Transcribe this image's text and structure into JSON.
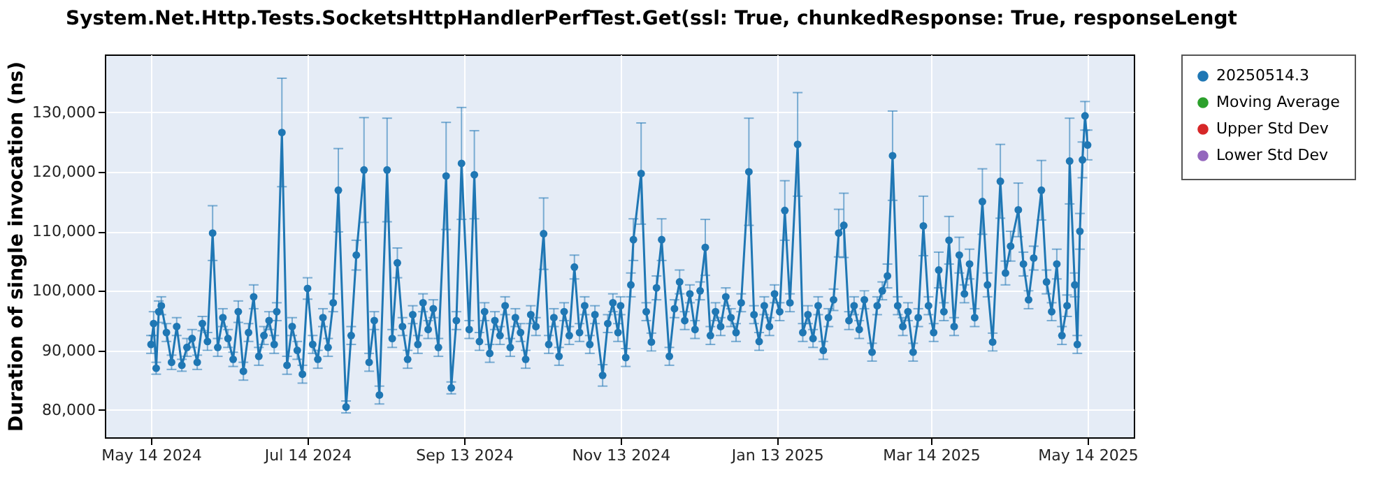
{
  "chart_data": {
    "type": "line",
    "title": "System.Net.Http.Tests.SocketsHttpHandlerPerfTest.Get(ssl: True, chunkedResponse: True, responseLengt",
    "ylabel": "Duration of single invocation (ns)",
    "x": [
      "2024-05-14",
      "2024-05-15",
      "2024-05-16",
      "2024-05-17",
      "2024-05-18",
      "2024-05-20",
      "2024-05-22",
      "2024-05-24",
      "2024-05-26",
      "2024-05-28",
      "2024-05-30",
      "2024-06-01",
      "2024-06-03",
      "2024-06-05",
      "2024-06-07",
      "2024-06-09",
      "2024-06-11",
      "2024-06-13",
      "2024-06-15",
      "2024-06-17",
      "2024-06-19",
      "2024-06-21",
      "2024-06-23",
      "2024-06-25",
      "2024-06-27",
      "2024-06-29",
      "2024-07-01",
      "2024-07-02",
      "2024-07-04",
      "2024-07-06",
      "2024-07-08",
      "2024-07-10",
      "2024-07-12",
      "2024-07-14",
      "2024-07-16",
      "2024-07-18",
      "2024-07-20",
      "2024-07-22",
      "2024-07-24",
      "2024-07-26",
      "2024-07-29",
      "2024-07-31",
      "2024-08-02",
      "2024-08-05",
      "2024-08-07",
      "2024-08-09",
      "2024-08-11",
      "2024-08-14",
      "2024-08-16",
      "2024-08-18",
      "2024-08-20",
      "2024-08-22",
      "2024-08-24",
      "2024-08-26",
      "2024-08-28",
      "2024-08-30",
      "2024-09-01",
      "2024-09-03",
      "2024-09-06",
      "2024-09-08",
      "2024-09-10",
      "2024-09-12",
      "2024-09-15",
      "2024-09-17",
      "2024-09-19",
      "2024-09-21",
      "2024-09-23",
      "2024-09-25",
      "2024-09-27",
      "2024-09-29",
      "2024-10-01",
      "2024-10-03",
      "2024-10-05",
      "2024-10-07",
      "2024-10-09",
      "2024-10-11",
      "2024-10-14",
      "2024-10-16",
      "2024-10-18",
      "2024-10-20",
      "2024-10-22",
      "2024-10-24",
      "2024-10-26",
      "2024-10-28",
      "2024-10-30",
      "2024-11-01",
      "2024-11-03",
      "2024-11-06",
      "2024-11-08",
      "2024-11-10",
      "2024-11-12",
      "2024-11-13",
      "2024-11-15",
      "2024-11-17",
      "2024-11-18",
      "2024-11-21",
      "2024-11-23",
      "2024-11-25",
      "2024-11-27",
      "2024-11-29",
      "2024-12-02",
      "2024-12-04",
      "2024-12-06",
      "2024-12-08",
      "2024-12-10",
      "2024-12-12",
      "2024-12-14",
      "2024-12-16",
      "2024-12-18",
      "2024-12-20",
      "2024-12-22",
      "2024-12-24",
      "2024-12-26",
      "2024-12-28",
      "2024-12-30",
      "2025-01-02",
      "2025-01-04",
      "2025-01-06",
      "2025-01-08",
      "2025-01-10",
      "2025-01-12",
      "2025-01-14",
      "2025-01-16",
      "2025-01-18",
      "2025-01-21",
      "2025-01-23",
      "2025-01-25",
      "2025-01-27",
      "2025-01-29",
      "2025-01-31",
      "2025-02-02",
      "2025-02-04",
      "2025-02-06",
      "2025-02-08",
      "2025-02-10",
      "2025-02-12",
      "2025-02-14",
      "2025-02-16",
      "2025-02-19",
      "2025-02-21",
      "2025-02-23",
      "2025-02-25",
      "2025-02-27",
      "2025-03-01",
      "2025-03-03",
      "2025-03-05",
      "2025-03-07",
      "2025-03-09",
      "2025-03-11",
      "2025-03-13",
      "2025-03-15",
      "2025-03-17",
      "2025-03-19",
      "2025-03-21",
      "2025-03-23",
      "2025-03-25",
      "2025-03-27",
      "2025-03-29",
      "2025-03-31",
      "2025-04-03",
      "2025-04-05",
      "2025-04-07",
      "2025-04-10",
      "2025-04-12",
      "2025-04-14",
      "2025-04-17",
      "2025-04-19",
      "2025-04-21",
      "2025-04-23",
      "2025-04-26",
      "2025-04-28",
      "2025-04-30",
      "2025-05-02",
      "2025-05-04",
      "2025-05-06",
      "2025-05-07",
      "2025-05-09",
      "2025-05-10",
      "2025-05-11",
      "2025-05-12",
      "2025-05-13",
      "2025-05-14"
    ],
    "series": [
      {
        "name": "20250514.3",
        "color": "#1f77b4",
        "values": [
          91000,
          94500,
          87000,
          96500,
          97500,
          93000,
          88000,
          94000,
          87500,
          90500,
          92000,
          88000,
          94500,
          91500,
          109700,
          90500,
          95500,
          92000,
          88500,
          96500,
          86500,
          93000,
          99000,
          89000,
          92500,
          95000,
          91000,
          96500,
          126600,
          87500,
          94000,
          90000,
          86000,
          100400,
          91000,
          88500,
          95500,
          90500,
          98000,
          116900,
          80500,
          92500,
          106000,
          120300,
          88000,
          95000,
          82500,
          120300,
          92000,
          104700,
          94000,
          88500,
          96000,
          91000,
          98000,
          93500,
          97000,
          90500,
          119300,
          83700,
          95000,
          121400,
          93500,
          119500,
          91500,
          96500,
          89500,
          95000,
          92500,
          97500,
          90500,
          95500,
          93000,
          88500,
          96000,
          94000,
          109600,
          91000,
          95500,
          89000,
          96500,
          92500,
          104000,
          93000,
          97500,
          91000,
          96000,
          85800,
          94500,
          98000,
          93000,
          97500,
          88800,
          101000,
          108600,
          119700,
          96500,
          91400,
          100500,
          108600,
          89000,
          97000,
          101500,
          95000,
          99500,
          93500,
          100000,
          107300,
          92500,
          96500,
          94000,
          99000,
          95500,
          93000,
          98000,
          120000,
          96000,
          91500,
          97500,
          94000,
          99500,
          96500,
          113500,
          98000,
          124600,
          93000,
          96000,
          92000,
          97500,
          90000,
          95500,
          98500,
          109700,
          111000,
          95000,
          97500,
          93500,
          98500,
          89700,
          97500,
          100000,
          102500,
          122700,
          97500,
          94000,
          96500,
          89700,
          95500,
          110900,
          97500,
          93000,
          103500,
          96500,
          108500,
          94000,
          106000,
          99500,
          104500,
          95500,
          115000,
          101000,
          91400,
          118400,
          103000,
          107500,
          113600,
          104500,
          98500,
          105500,
          116900,
          101500,
          96500,
          104500,
          92500,
          97500,
          121800,
          101000,
          91000,
          110000,
          122000,
          129400,
          124500
        ],
        "errors": [
          1500,
          2000,
          1000,
          1800,
          1500,
          1500,
          1200,
          1500,
          1000,
          1500,
          1500,
          1200,
          1200,
          1500,
          4600,
          1500,
          1500,
          1500,
          1200,
          1800,
          1500,
          1500,
          2000,
          1500,
          1500,
          1500,
          1500,
          1500,
          9100,
          1500,
          1500,
          1500,
          1500,
          1800,
          1500,
          1500,
          1500,
          1500,
          1500,
          7000,
          1000,
          1500,
          2500,
          8800,
          1500,
          1500,
          1500,
          8700,
          1500,
          2500,
          1500,
          1500,
          1500,
          1500,
          1500,
          1500,
          1500,
          1500,
          9000,
          1000,
          1500,
          9400,
          1500,
          7400,
          1500,
          1500,
          1500,
          1500,
          1500,
          1500,
          1500,
          1500,
          1500,
          1500,
          1500,
          1500,
          6000,
          1500,
          1500,
          1500,
          1500,
          1500,
          2000,
          1500,
          1500,
          1500,
          1500,
          1800,
          1500,
          1500,
          1500,
          1500,
          1500,
          2000,
          3500,
          8500,
          1500,
          1500,
          2000,
          3500,
          1500,
          1500,
          2000,
          1500,
          1500,
          1500,
          1500,
          4700,
          1500,
          1500,
          1500,
          1500,
          1500,
          1500,
          1500,
          9000,
          1500,
          1500,
          1500,
          1500,
          1500,
          1500,
          5000,
          1500,
          8700,
          1500,
          1500,
          1500,
          1500,
          1500,
          1500,
          1800,
          4000,
          5400,
          1500,
          1500,
          1500,
          1500,
          1500,
          1500,
          1500,
          2000,
          7500,
          1500,
          1500,
          1500,
          1500,
          1500,
          5000,
          1500,
          1500,
          3000,
          1500,
          4000,
          1500,
          3000,
          1500,
          2500,
          1500,
          5500,
          2000,
          1500,
          6200,
          2000,
          2500,
          4500,
          2000,
          1500,
          2000,
          5000,
          2000,
          1500,
          2500,
          1500,
          1800,
          7200,
          2000,
          1500,
          3000,
          3000,
          2400,
          2500
        ]
      },
      {
        "name": "Moving Average",
        "color": "#2ca02c",
        "values": [
          null,
          null,
          null,
          null,
          null,
          null,
          null,
          null,
          null,
          null,
          null,
          null,
          null,
          null,
          null,
          null,
          null,
          null,
          null,
          null,
          null,
          null,
          null,
          null,
          null,
          null,
          null,
          null,
          null,
          null,
          null,
          null,
          null,
          null,
          null,
          null,
          null,
          null,
          null,
          null,
          null,
          null,
          null,
          null,
          null,
          null,
          null,
          null,
          null,
          null,
          null,
          null,
          null,
          null,
          null,
          null,
          null,
          null,
          null,
          null,
          null,
          null,
          null,
          null,
          null,
          null,
          null,
          null,
          null,
          null,
          null,
          null,
          null,
          null,
          null,
          null,
          null,
          null,
          null,
          null,
          null,
          null,
          null,
          null,
          null,
          null,
          null,
          null,
          null,
          null,
          null,
          null,
          null,
          null,
          null,
          null,
          null,
          null,
          null,
          null,
          null,
          null,
          null,
          null,
          null,
          null,
          null,
          null,
          null,
          null,
          null,
          null,
          null,
          null,
          null,
          null,
          null,
          null,
          null,
          null,
          null,
          null,
          null,
          null,
          null,
          null,
          null,
          null,
          null,
          null,
          null,
          null,
          null,
          null,
          null,
          null,
          null,
          null,
          null,
          null,
          null,
          null,
          null,
          null,
          null,
          null,
          null,
          null,
          null,
          null,
          null,
          null,
          null,
          null,
          null,
          null,
          null,
          null,
          null,
          null,
          null,
          null,
          null,
          null,
          null,
          null,
          null,
          null,
          null,
          null,
          null,
          null,
          null,
          null,
          null,
          null,
          null,
          null,
          null,
          null,
          null,
          null
        ]
      },
      {
        "name": "Upper Std Dev",
        "color": "#d62728",
        "values": [
          null,
          null,
          null,
          null,
          null,
          null,
          null,
          null,
          null,
          null,
          null,
          null,
          null,
          null,
          null,
          null,
          null,
          null,
          null,
          null,
          null,
          null,
          null,
          null,
          null,
          null,
          null,
          null,
          null,
          null,
          null,
          null,
          null,
          null,
          null,
          null,
          null,
          null,
          null,
          null,
          null,
          null,
          null,
          null,
          null,
          null,
          null,
          null,
          null,
          null,
          null,
          null,
          null,
          null,
          null,
          null,
          null,
          null,
          null,
          null,
          null,
          null,
          null,
          null,
          null,
          null,
          null,
          null,
          null,
          null,
          null,
          null,
          null,
          null,
          null,
          null,
          null,
          null,
          null,
          null,
          null,
          null,
          null,
          null,
          null,
          null,
          null,
          null,
          null,
          null,
          null,
          null,
          null,
          null,
          null,
          null,
          null,
          null,
          null,
          null,
          null,
          null,
          null,
          null,
          null,
          null,
          null,
          null,
          null,
          null,
          null,
          null,
          null,
          null,
          null,
          null,
          null,
          null,
          null,
          null,
          null,
          null,
          null,
          null,
          null,
          null,
          null,
          null,
          null,
          null,
          null,
          null,
          null,
          null,
          null,
          null,
          null,
          null,
          null,
          null,
          null,
          null,
          null,
          null,
          null,
          null,
          null,
          null,
          null,
          null,
          null,
          null,
          null,
          null,
          null,
          null,
          null,
          null,
          null,
          null,
          null,
          null,
          null,
          null,
          null,
          null,
          null,
          null,
          null,
          null,
          null,
          null,
          null,
          null,
          null,
          null,
          null,
          null,
          null,
          null,
          null,
          null
        ]
      },
      {
        "name": "Lower Std Dev",
        "color": "#9467bd",
        "values": [
          null,
          null,
          null,
          null,
          null,
          null,
          null,
          null,
          null,
          null,
          null,
          null,
          null,
          null,
          null,
          null,
          null,
          null,
          null,
          null,
          null,
          null,
          null,
          null,
          null,
          null,
          null,
          null,
          null,
          null,
          null,
          null,
          null,
          null,
          null,
          null,
          null,
          null,
          null,
          null,
          null,
          null,
          null,
          null,
          null,
          null,
          null,
          null,
          null,
          null,
          null,
          null,
          null,
          null,
          null,
          null,
          null,
          null,
          null,
          null,
          null,
          null,
          null,
          null,
          null,
          null,
          null,
          null,
          null,
          null,
          null,
          null,
          null,
          null,
          null,
          null,
          null,
          null,
          null,
          null,
          null,
          null,
          null,
          null,
          null,
          null,
          null,
          null,
          null,
          null,
          null,
          null,
          null,
          null,
          null,
          null,
          null,
          null,
          null,
          null,
          null,
          null,
          null,
          null,
          null,
          null,
          null,
          null,
          null,
          null,
          null,
          null,
          null,
          null,
          null,
          null,
          null,
          null,
          null,
          null,
          null,
          null,
          null,
          null,
          null,
          null,
          null,
          null,
          null,
          null,
          null,
          null,
          null,
          null,
          null,
          null,
          null,
          null,
          null,
          null,
          null,
          null,
          null,
          null,
          null,
          null,
          null,
          null,
          null,
          null,
          null,
          null,
          null,
          null,
          null,
          null,
          null,
          null,
          null,
          null,
          null,
          null,
          null,
          null,
          null,
          null,
          null,
          null,
          null,
          null,
          null,
          null,
          null,
          null,
          null,
          null,
          null,
          null,
          null,
          null,
          null,
          null
        ]
      }
    ],
    "xlim": [
      "2024-04-26",
      "2025-06-01"
    ],
    "xticks": [
      {
        "value": "2024-05-14",
        "label": "May 14 2024"
      },
      {
        "value": "2024-07-14",
        "label": "Jul 14 2024"
      },
      {
        "value": "2024-09-13",
        "label": "Sep 13 2024"
      },
      {
        "value": "2024-11-13",
        "label": "Nov 13 2024"
      },
      {
        "value": "2025-01-13",
        "label": "Jan 13 2025"
      },
      {
        "value": "2025-03-14",
        "label": "Mar 14 2025"
      },
      {
        "value": "2025-05-14",
        "label": "May 14 2025"
      }
    ],
    "ylim": [
      75400,
      139700
    ],
    "yticks": [
      {
        "value": 80000,
        "label": "80,000"
      },
      {
        "value": 90000,
        "label": "90,000"
      },
      {
        "value": 100000,
        "label": "100,000"
      },
      {
        "value": 110000,
        "label": "110,000"
      },
      {
        "value": 120000,
        "label": "120,000"
      },
      {
        "value": 130000,
        "label": "130,000"
      }
    ],
    "grid": true,
    "legend": "right",
    "marker": "circle",
    "line_style": "solid"
  }
}
